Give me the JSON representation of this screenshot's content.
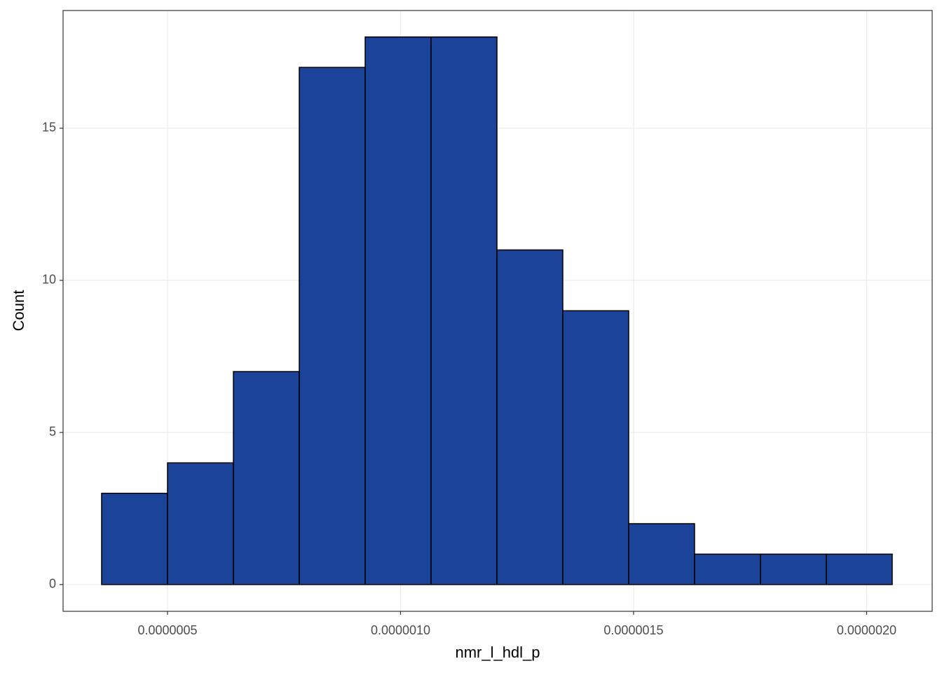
{
  "chart_data": {
    "type": "histogram",
    "x_label": "nmr_l_hdl_p",
    "y_label": "Count",
    "bins": [
      3.586e-07,
      5e-07,
      6.414e-07,
      7.827e-07,
      9.241e-07,
      1.0654e-06,
      1.2068e-06,
      1.3481e-06,
      1.4895e-06,
      1.6308e-06,
      1.7722e-06,
      1.9135e-06,
      2.0549e-06
    ],
    "values": [
      3,
      4,
      7,
      17,
      18,
      18,
      11,
      9,
      2,
      1,
      1,
      1
    ],
    "color": "#1a4399",
    "xlim": [
      2.759e-07,
      2.1407e-06
    ],
    "ylim": [
      -0.88,
      18.87
    ],
    "xticks": [
      {
        "value": 5e-07,
        "label": "0.0000005"
      },
      {
        "value": 1e-06,
        "label": "0.0000010"
      },
      {
        "value": 1.5e-06,
        "label": "0.0000015"
      },
      {
        "value": 2e-06,
        "label": "0.0000020"
      }
    ],
    "yticks": [
      0,
      5,
      10,
      15
    ],
    "grid": true
  }
}
